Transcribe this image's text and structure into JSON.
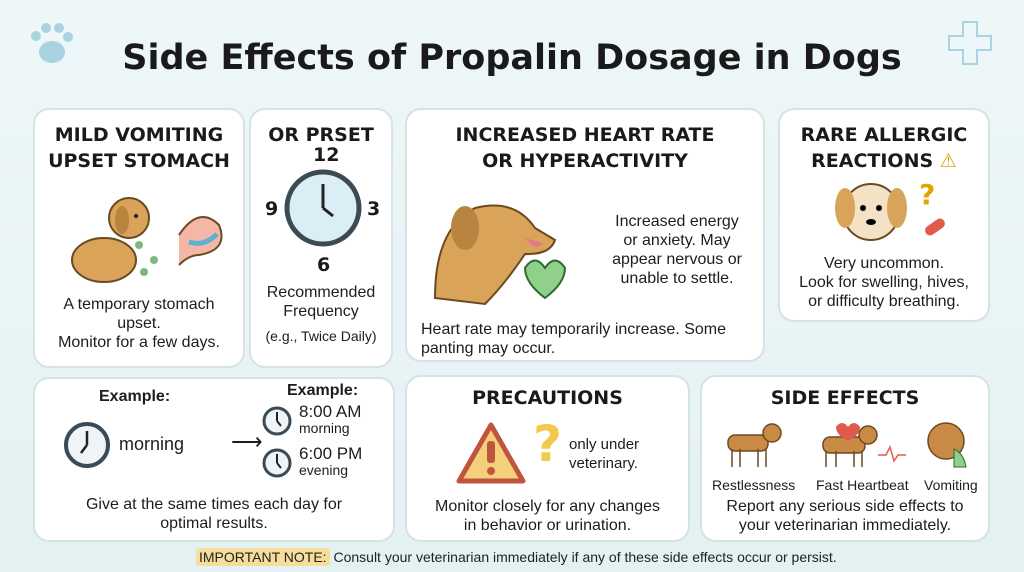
{
  "title": "Side Effects of Propalin Dosage in Dogs",
  "mild": {
    "heading_line1": "MILD VOMITING",
    "heading_line2": "UPSET STOMACH",
    "text_line1": "A temporary stomach",
    "text_line2": "upset.",
    "text_line3": "Monitor for a few days."
  },
  "frequency": {
    "heading": "OR PRSET",
    "clock_numbers": [
      "12",
      "3",
      "6",
      "9"
    ],
    "label_line1": "Recommended",
    "label_line2": "Frequency",
    "example": "(e.g., Twice Daily)"
  },
  "heart": {
    "heading_line1": "INCREASED HEART RATE",
    "heading_line2": "OR HYPERACTIVITY",
    "side_line1": "Increased energy",
    "side_line2": "or anxiety. May",
    "side_line3": "appear nervous or",
    "side_line4": "unable to settle.",
    "bottom_line1": "Heart rate may temporarily increase. Some",
    "bottom_line2": "panting may occur."
  },
  "allergic": {
    "heading_line1": "RARE ALLERGIC",
    "heading_line2": "REACTIONS",
    "text_line1": "Very uncommon.",
    "text_line2": "Look for swelling, hives,",
    "text_line3": "or difficulty breathing."
  },
  "example": {
    "left_label": "Example:",
    "left_time": "morning",
    "right_label": "Example:",
    "times": [
      {
        "time": "8:00 AM",
        "period": "morning"
      },
      {
        "time": "6:00 PM",
        "period": "evening"
      }
    ],
    "text_line1": "Give at the same times each day for",
    "text_line2": "optimal results."
  },
  "precautions": {
    "heading": "PRECAUTIONS",
    "side_line1": "only under",
    "side_line2": "veterinary.",
    "text_line1": "Monitor closely for any changes",
    "text_line2": "in behavior or urination."
  },
  "side_effects": {
    "heading": "SIDE EFFECTS",
    "items": [
      "Restlessness",
      "Fast Heartbeat",
      "Vomiting"
    ],
    "text_line1": "Report any serious side effects to",
    "text_line2": "your veterinarian immediately."
  },
  "note": {
    "label": "IMPORTANT NOTE:",
    "text": "Consult your veterinarian immediately if any of these side effects occur or persist."
  },
  "colors": {
    "dog": "#d9a45a",
    "warning": "#f2c94c",
    "heart": "#e05a4e",
    "clock": "#5b87a0"
  }
}
